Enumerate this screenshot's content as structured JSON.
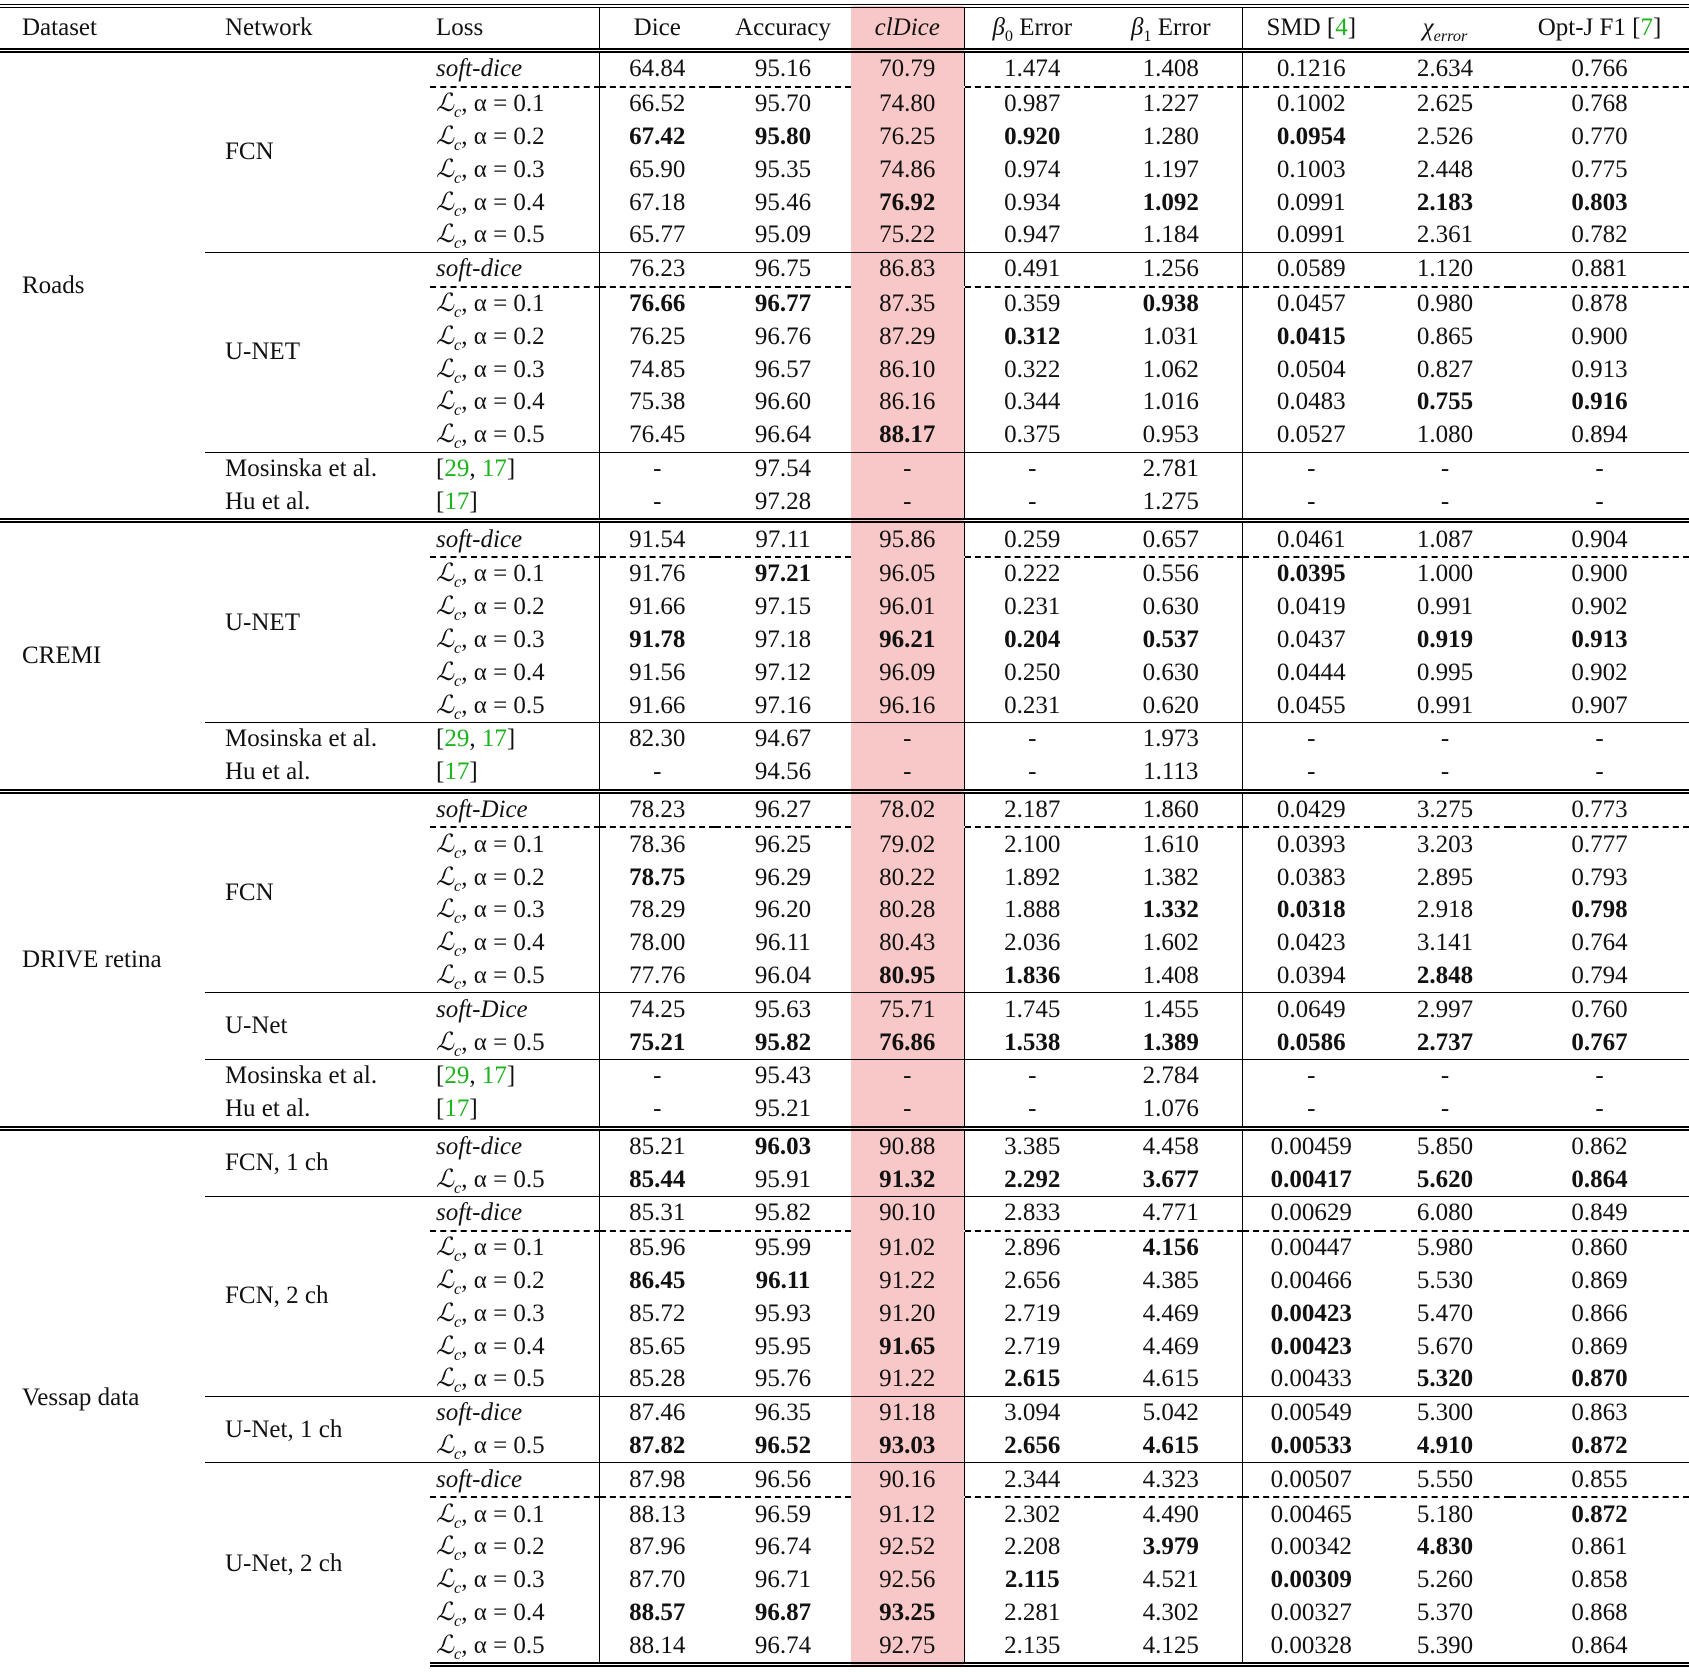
{
  "header": [
    {
      "text": "Dataset"
    },
    {
      "text": "Network"
    },
    {
      "text": "Loss"
    },
    {
      "text": "Dice"
    },
    {
      "text": "Accuracy"
    },
    {
      "text": "clDice",
      "italic": true
    },
    {
      "text": "β",
      "sub": "0",
      "suffix": " Error"
    },
    {
      "text": "β",
      "sub": "1",
      "suffix": " Error"
    },
    {
      "text": "SMD [4]"
    },
    {
      "text": "χ",
      "sub": "error"
    },
    {
      "text": "Opt-J F1 [7]"
    }
  ],
  "colors": {
    "highlight": "#f8c7c7",
    "citation": "#1db31d"
  },
  "datasets": [
    {
      "name": "Roads",
      "groups": [
        {
          "network": "FCN",
          "rows": [
            {
              "loss": "soft-dice",
              "v": [
                "64.84",
                "95.16",
                "70.79",
                "1.474",
                "1.408",
                "0.1216",
                "2.634",
                "0.766"
              ],
              "b": []
            },
            {
              "loss": "ℒc, α = 0.1",
              "v": [
                "66.52",
                "95.70",
                "74.80",
                "0.987",
                "1.227",
                "0.1002",
                "2.625",
                "0.768"
              ],
              "b": []
            },
            {
              "loss": "ℒc, α = 0.2",
              "v": [
                "67.42",
                "95.80",
                "76.25",
                "0.920",
                "1.280",
                "0.0954",
                "2.526",
                "0.770"
              ],
              "b": [
                0,
                1,
                3,
                5
              ]
            },
            {
              "loss": "ℒc, α = 0.3",
              "v": [
                "65.90",
                "95.35",
                "74.86",
                "0.974",
                "1.197",
                "0.1003",
                "2.448",
                "0.775"
              ],
              "b": []
            },
            {
              "loss": "ℒc, α = 0.4",
              "v": [
                "67.18",
                "95.46",
                "76.92",
                "0.934",
                "1.092",
                "0.0991",
                "2.183",
                "0.803"
              ],
              "b": [
                2,
                4,
                6,
                7
              ]
            },
            {
              "loss": "ℒc, α = 0.5",
              "v": [
                "65.77",
                "95.09",
                "75.22",
                "0.947",
                "1.184",
                "0.0991",
                "2.361",
                "0.782"
              ],
              "b": []
            }
          ]
        },
        {
          "network": "U-NET",
          "rows": [
            {
              "loss": "soft-dice",
              "v": [
                "76.23",
                "96.75",
                "86.83",
                "0.491",
                "1.256",
                "0.0589",
                "1.120",
                "0.881"
              ],
              "b": []
            },
            {
              "loss": "ℒc, α = 0.1",
              "v": [
                "76.66",
                "96.77",
                "87.35",
                "0.359",
                "0.938",
                "0.0457",
                "0.980",
                "0.878"
              ],
              "b": [
                0,
                1,
                4
              ]
            },
            {
              "loss": "ℒc, α = 0.2",
              "v": [
                "76.25",
                "96.76",
                "87.29",
                "0.312",
                "1.031",
                "0.0415",
                "0.865",
                "0.900"
              ],
              "b": [
                3,
                5
              ]
            },
            {
              "loss": "ℒc, α = 0.3",
              "v": [
                "74.85",
                "96.57",
                "86.10",
                "0.322",
                "1.062",
                "0.0504",
                "0.827",
                "0.913"
              ],
              "b": []
            },
            {
              "loss": "ℒc, α = 0.4",
              "v": [
                "75.38",
                "96.60",
                "86.16",
                "0.344",
                "1.016",
                "0.0483",
                "0.755",
                "0.916"
              ],
              "b": [
                6,
                7
              ]
            },
            {
              "loss": "ℒc, α = 0.5",
              "v": [
                "76.45",
                "96.64",
                "88.17",
                "0.375",
                "0.953",
                "0.0527",
                "1.080",
                "0.894"
              ],
              "b": [
                2
              ]
            }
          ]
        },
        {
          "rows": [
            {
              "network": "Mosinska et al.",
              "loss": "[29, 17]",
              "v": [
                "-",
                "97.54",
                "-",
                "-",
                "2.781",
                "-",
                "-",
                "-"
              ],
              "b": []
            },
            {
              "network": "Hu et al.",
              "loss": "[17]",
              "v": [
                "-",
                "97.28",
                "-",
                "-",
                "1.275",
                "-",
                "-",
                "-"
              ],
              "b": []
            }
          ]
        }
      ]
    },
    {
      "name": "CREMI",
      "groups": [
        {
          "network": "U-NET",
          "rows": [
            {
              "loss": "soft-dice",
              "v": [
                "91.54",
                "97.11",
                "95.86",
                "0.259",
                "0.657",
                "0.0461",
                "1.087",
                "0.904"
              ],
              "b": []
            },
            {
              "loss": "ℒc, α = 0.1",
              "v": [
                "91.76",
                "97.21",
                "96.05",
                "0.222",
                "0.556",
                "0.0395",
                "1.000",
                "0.900"
              ],
              "b": [
                1,
                5
              ]
            },
            {
              "loss": "ℒc, α = 0.2",
              "v": [
                "91.66",
                "97.15",
                "96.01",
                "0.231",
                "0.630",
                "0.0419",
                "0.991",
                "0.902"
              ],
              "b": []
            },
            {
              "loss": "ℒc, α = 0.3",
              "v": [
                "91.78",
                "97.18",
                "96.21",
                "0.204",
                "0.537",
                "0.0437",
                "0.919",
                "0.913"
              ],
              "b": [
                0,
                2,
                3,
                4,
                6,
                7
              ]
            },
            {
              "loss": "ℒc, α = 0.4",
              "v": [
                "91.56",
                "97.12",
                "96.09",
                "0.250",
                "0.630",
                "0.0444",
                "0.995",
                "0.902"
              ],
              "b": []
            },
            {
              "loss": "ℒc, α = 0.5",
              "v": [
                "91.66",
                "97.16",
                "96.16",
                "0.231",
                "0.620",
                "0.0455",
                "0.991",
                "0.907"
              ],
              "b": []
            }
          ]
        },
        {
          "rows": [
            {
              "network": "Mosinska et al.",
              "loss": "[29, 17]",
              "v": [
                "82.30",
                "94.67",
                "-",
                "-",
                "1.973",
                "-",
                "-",
                "-"
              ],
              "b": []
            },
            {
              "network": "Hu et al.",
              "loss": "[17]",
              "v": [
                "-",
                "94.56",
                "-",
                "-",
                "1.113",
                "-",
                "-",
                "-"
              ],
              "b": []
            }
          ]
        }
      ]
    },
    {
      "name": "DRIVE retina",
      "groups": [
        {
          "network": "FCN",
          "rows": [
            {
              "loss": "soft-Dice",
              "v": [
                "78.23",
                "96.27",
                "78.02",
                "2.187",
                "1.860",
                "0.0429",
                "3.275",
                "0.773"
              ],
              "b": []
            },
            {
              "loss": "ℒc, α = 0.1",
              "v": [
                "78.36",
                "96.25",
                "79.02",
                "2.100",
                "1.610",
                "0.0393",
                "3.203",
                "0.777"
              ],
              "b": []
            },
            {
              "loss": "ℒc, α = 0.2",
              "v": [
                "78.75",
                "96.29",
                "80.22",
                "1.892",
                "1.382",
                "0.0383",
                "2.895",
                "0.793"
              ],
              "b": [
                0
              ]
            },
            {
              "loss": "ℒc, α = 0.3",
              "v": [
                "78.29",
                "96.20",
                "80.28",
                "1.888",
                "1.332",
                "0.0318",
                "2.918",
                "0.798"
              ],
              "b": [
                4,
                5,
                7
              ]
            },
            {
              "loss": "ℒc, α = 0.4",
              "v": [
                "78.00",
                "96.11",
                "80.43",
                "2.036",
                "1.602",
                "0.0423",
                "3.141",
                "0.764"
              ],
              "b": []
            },
            {
              "loss": "ℒc, α = 0.5",
              "v": [
                "77.76",
                "96.04",
                "80.95",
                "1.836",
                "1.408",
                "0.0394",
                "2.848",
                "0.794"
              ],
              "b": [
                2,
                3,
                6
              ]
            }
          ]
        },
        {
          "network": "U-Net",
          "rows": [
            {
              "loss": "soft-Dice",
              "v": [
                "74.25",
                "95.63",
                "75.71",
                "1.745",
                "1.455",
                "0.0649",
                "2.997",
                "0.760"
              ],
              "b": []
            },
            {
              "loss": "ℒc, α = 0.5",
              "v": [
                "75.21",
                "95.82",
                "76.86",
                "1.538",
                "1.389",
                "0.0586",
                "2.737",
                "0.767"
              ],
              "b": [
                0,
                1,
                2,
                3,
                4,
                5,
                6,
                7
              ]
            }
          ]
        },
        {
          "rows": [
            {
              "network": "Mosinska et al.",
              "loss": "[29, 17]",
              "v": [
                "-",
                "95.43",
                "-",
                "-",
                "2.784",
                "-",
                "-",
                "-"
              ],
              "b": []
            },
            {
              "network": "Hu et al.",
              "loss": "[17]",
              "v": [
                "-",
                "95.21",
                "-",
                "-",
                "1.076",
                "-",
                "-",
                "-"
              ],
              "b": []
            }
          ]
        }
      ]
    },
    {
      "name": "Vessap data",
      "groups": [
        {
          "network": "FCN, 1 ch",
          "rows": [
            {
              "loss": "soft-dice",
              "v": [
                "85.21",
                "96.03",
                "90.88",
                "3.385",
                "4.458",
                "0.00459",
                "5.850",
                "0.862"
              ],
              "b": [
                1
              ]
            },
            {
              "loss": "ℒc, α = 0.5",
              "v": [
                "85.44",
                "95.91",
                "91.32",
                "2.292",
                "3.677",
                "0.00417",
                "5.620",
                "0.864"
              ],
              "b": [
                0,
                2,
                3,
                4,
                5,
                6,
                7
              ]
            }
          ]
        },
        {
          "network": "FCN, 2 ch",
          "rows": [
            {
              "loss": "soft-dice",
              "v": [
                "85.31",
                "95.82",
                "90.10",
                "2.833",
                "4.771",
                "0.00629",
                "6.080",
                "0.849"
              ],
              "b": []
            },
            {
              "loss": "ℒc, α = 0.1",
              "v": [
                "85.96",
                "95.99",
                "91.02",
                "2.896",
                "4.156",
                "0.00447",
                "5.980",
                "0.860"
              ],
              "b": [
                4
              ]
            },
            {
              "loss": "ℒc, α = 0.2",
              "v": [
                "86.45",
                "96.11",
                "91.22",
                "2.656",
                "4.385",
                "0.00466",
                "5.530",
                "0.869"
              ],
              "b": [
                0,
                1
              ]
            },
            {
              "loss": "ℒc, α = 0.3",
              "v": [
                "85.72",
                "95.93",
                "91.20",
                "2.719",
                "4.469",
                "0.00423",
                "5.470",
                "0.866"
              ],
              "b": [
                5
              ]
            },
            {
              "loss": "ℒc, α = 0.4",
              "v": [
                "85.65",
                "95.95",
                "91.65",
                "2.719",
                "4.469",
                "0.00423",
                "5.670",
                "0.869"
              ],
              "b": [
                2,
                5
              ]
            },
            {
              "loss": "ℒc, α = 0.5",
              "v": [
                "85.28",
                "95.76",
                "91.22",
                "2.615",
                "4.615",
                "0.00433",
                "5.320",
                "0.870"
              ],
              "b": [
                3,
                6,
                7
              ]
            }
          ]
        },
        {
          "network": "U-Net, 1 ch",
          "rows": [
            {
              "loss": "soft-dice",
              "v": [
                "87.46",
                "96.35",
                "91.18",
                "3.094",
                "5.042",
                "0.00549",
                "5.300",
                "0.863"
              ],
              "b": []
            },
            {
              "loss": "ℒc, α = 0.5",
              "v": [
                "87.82",
                "96.52",
                "93.03",
                "2.656",
                "4.615",
                "0.00533",
                "4.910",
                "0.872"
              ],
              "b": [
                0,
                1,
                2,
                3,
                4,
                5,
                6,
                7
              ]
            }
          ]
        },
        {
          "network": "U-Net, 2 ch",
          "rows": [
            {
              "loss": "soft-dice",
              "v": [
                "87.98",
                "96.56",
                "90.16",
                "2.344",
                "4.323",
                "0.00507",
                "5.550",
                "0.855"
              ],
              "b": []
            },
            {
              "loss": "ℒc, α = 0.1",
              "v": [
                "88.13",
                "96.59",
                "91.12",
                "2.302",
                "4.490",
                "0.00465",
                "5.180",
                "0.872"
              ],
              "b": [
                7
              ]
            },
            {
              "loss": "ℒc, α = 0.2",
              "v": [
                "87.96",
                "96.74",
                "92.52",
                "2.208",
                "3.979",
                "0.00342",
                "4.830",
                "0.861"
              ],
              "b": [
                4,
                6
              ]
            },
            {
              "loss": "ℒc, α = 0.3",
              "v": [
                "87.70",
                "96.71",
                "92.56",
                "2.115",
                "4.521",
                "0.00309",
                "5.260",
                "0.858"
              ],
              "b": [
                3,
                5
              ]
            },
            {
              "loss": "ℒc, α = 0.4",
              "v": [
                "88.57",
                "96.87",
                "93.25",
                "2.281",
                "4.302",
                "0.00327",
                "5.370",
                "0.868"
              ],
              "b": [
                0,
                1,
                2
              ]
            },
            {
              "loss": "ℒc, α = 0.5",
              "v": [
                "88.14",
                "96.74",
                "92.75",
                "2.135",
                "4.125",
                "0.00328",
                "5.390",
                "0.864"
              ],
              "b": []
            }
          ]
        }
      ]
    }
  ]
}
